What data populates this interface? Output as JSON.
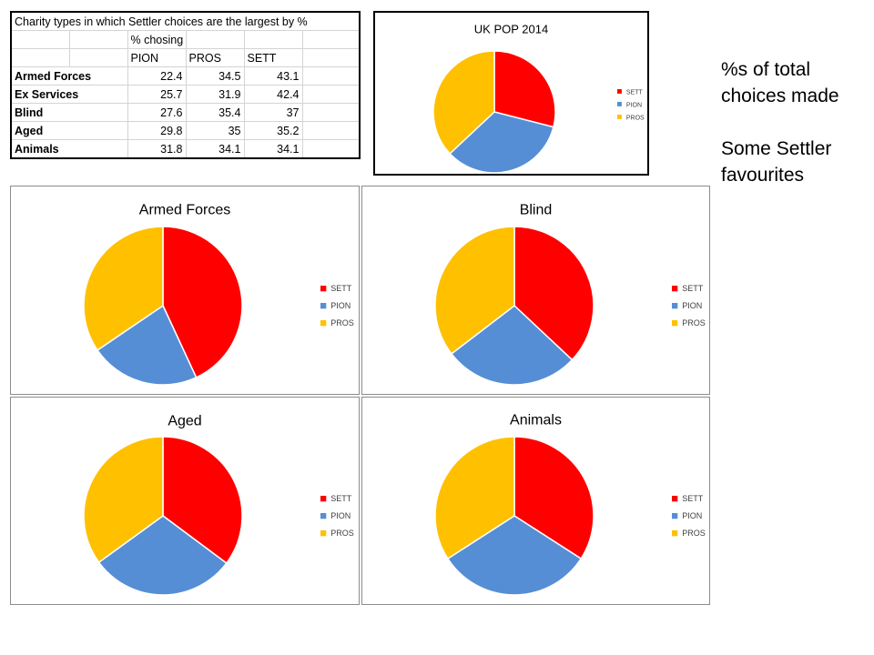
{
  "table": {
    "title": "Charity types in which Settler choices are the largest by %",
    "subheader": "% chosing",
    "columns": [
      "PION",
      "PROS",
      "SETT"
    ],
    "rows": [
      {
        "label": "Armed Forces",
        "values": [
          "22.4",
          "34.5",
          "43.1"
        ]
      },
      {
        "label": "Ex Services",
        "values": [
          "25.7",
          "31.9",
          "42.4"
        ]
      },
      {
        "label": "Blind",
        "values": [
          "27.6",
          "35.4",
          "37"
        ]
      },
      {
        "label": "Aged",
        "values": [
          "29.8",
          "35",
          "35.2"
        ]
      },
      {
        "label": "Animals",
        "values": [
          "31.8",
          "34.1",
          "34.1"
        ]
      }
    ]
  },
  "side_text": {
    "line1": "%s of total",
    "line2": "choices made",
    "line3": "Some Settler",
    "line4": "favourites"
  },
  "colors": {
    "SETT": "#ff0000",
    "PION": "#558ed5",
    "PROS": "#ffc000"
  },
  "chart_data": [
    {
      "type": "pie",
      "title": "UK POP 2014",
      "labels": [
        "SETT",
        "PION",
        "PROS"
      ],
      "values": [
        29,
        34,
        37
      ],
      "legend": "right",
      "colors": [
        "#ff0000",
        "#558ed5",
        "#ffc000"
      ]
    },
    {
      "type": "pie",
      "title": "Armed Forces",
      "labels": [
        "SETT",
        "PION",
        "PROS"
      ],
      "values": [
        43.1,
        22.4,
        34.5
      ],
      "legend": "right",
      "colors": [
        "#ff0000",
        "#558ed5",
        "#ffc000"
      ]
    },
    {
      "type": "pie",
      "title": "Blind",
      "labels": [
        "SETT",
        "PION",
        "PROS"
      ],
      "values": [
        37,
        27.6,
        35.4
      ],
      "legend": "right",
      "colors": [
        "#ff0000",
        "#558ed5",
        "#ffc000"
      ]
    },
    {
      "type": "pie",
      "title": "Aged",
      "labels": [
        "SETT",
        "PION",
        "PROS"
      ],
      "values": [
        35.2,
        29.8,
        35
      ],
      "legend": "right",
      "colors": [
        "#ff0000",
        "#558ed5",
        "#ffc000"
      ]
    },
    {
      "type": "pie",
      "title": "Animals",
      "labels": [
        "SETT",
        "PION",
        "PROS"
      ],
      "values": [
        34.1,
        31.8,
        34.1
      ],
      "legend": "right",
      "colors": [
        "#ff0000",
        "#558ed5",
        "#ffc000"
      ]
    }
  ]
}
